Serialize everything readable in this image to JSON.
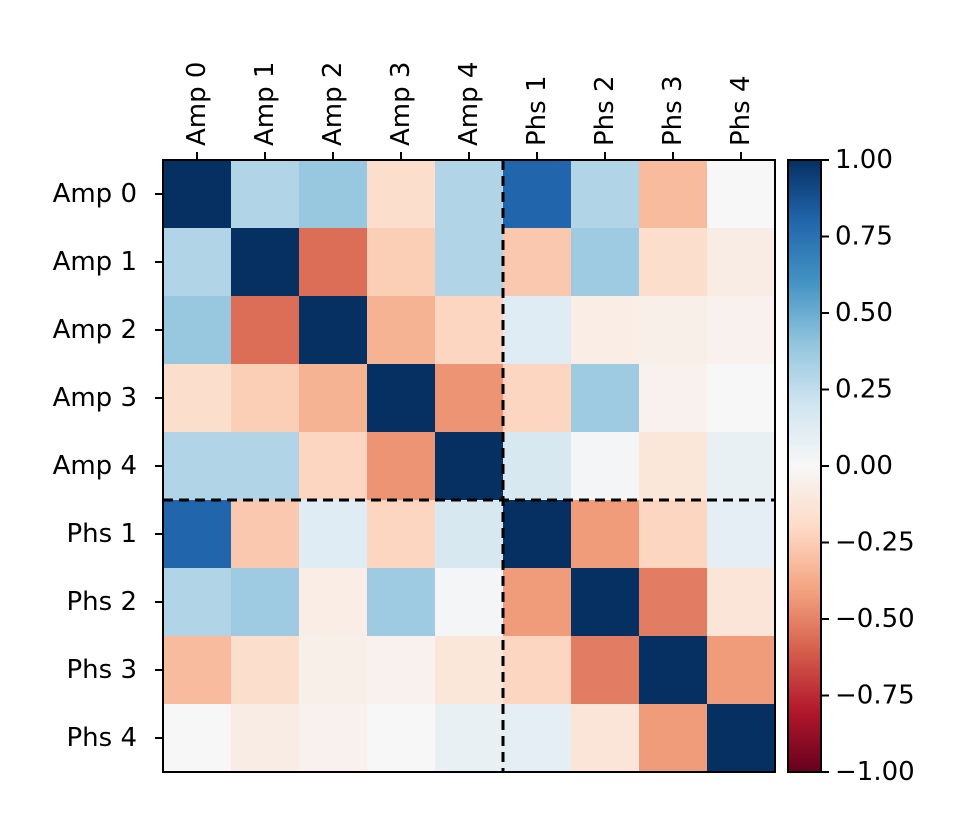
{
  "chart_data": {
    "type": "heatmap",
    "title": "",
    "labels": [
      "Amp 0",
      "Amp 1",
      "Amp 2",
      "Amp 3",
      "Amp 4",
      "Phs 1",
      "Phs 2",
      "Phs 3",
      "Phs 4"
    ],
    "matrix": [
      [
        1.0,
        0.3,
        0.38,
        -0.18,
        0.3,
        0.8,
        0.3,
        -0.32,
        0.0
      ],
      [
        0.3,
        1.0,
        -0.56,
        -0.25,
        0.3,
        -0.27,
        0.36,
        -0.18,
        -0.08
      ],
      [
        0.38,
        -0.56,
        1.0,
        -0.35,
        -0.22,
        0.12,
        -0.07,
        -0.06,
        -0.04
      ],
      [
        -0.18,
        -0.25,
        -0.35,
        1.0,
        -0.45,
        -0.22,
        0.36,
        -0.04,
        0.0
      ],
      [
        0.3,
        0.3,
        -0.22,
        -0.45,
        1.0,
        0.17,
        0.02,
        -0.12,
        0.08
      ],
      [
        0.8,
        -0.27,
        0.12,
        -0.22,
        0.17,
        1.0,
        -0.43,
        -0.22,
        0.1
      ],
      [
        0.3,
        0.36,
        -0.07,
        0.36,
        0.02,
        -0.43,
        1.0,
        -0.52,
        -0.13
      ],
      [
        -0.32,
        -0.18,
        -0.06,
        -0.04,
        -0.12,
        -0.22,
        -0.52,
        1.0,
        -0.43
      ],
      [
        0.0,
        -0.08,
        -0.04,
        0.0,
        0.08,
        0.1,
        -0.13,
        -0.43,
        1.0
      ]
    ],
    "colormap": "RdBu",
    "vmin": -1.0,
    "vmax": 1.0,
    "divider_after_index": 4,
    "colorbar_ticks": [
      "1.00",
      "0.75",
      "0.50",
      "0.25",
      "0.00",
      "−0.25",
      "−0.50",
      "−0.75",
      "−1.00"
    ],
    "colorbar_tick_values": [
      1.0,
      0.75,
      0.5,
      0.25,
      0.0,
      -0.25,
      -0.5,
      -0.75,
      -1.0
    ]
  }
}
